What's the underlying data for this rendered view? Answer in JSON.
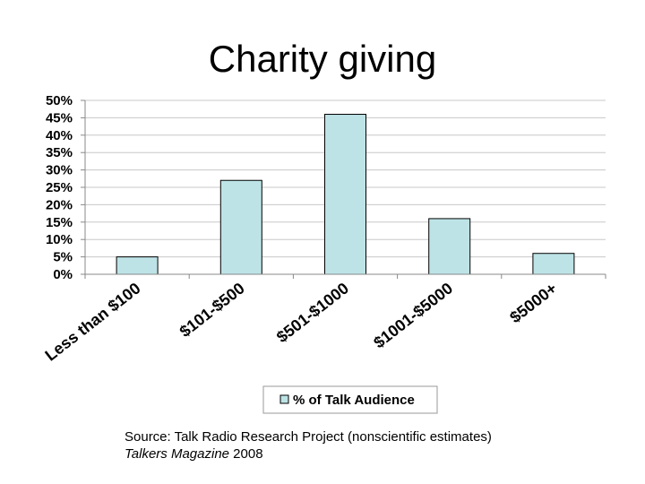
{
  "title": "Charity giving",
  "chart_data": {
    "type": "bar",
    "title": "Charity giving",
    "categories": [
      "Less than $100",
      "$101-$500",
      "$501-$1000",
      "$1001-$5000",
      "$5000+"
    ],
    "series": [
      {
        "name": "% of Talk Audience",
        "values": [
          5,
          27,
          46,
          16,
          6
        ]
      }
    ],
    "ylim": [
      0,
      50
    ],
    "yticks": [
      "0%",
      "5%",
      "10%",
      "15%",
      "20%",
      "25%",
      "30%",
      "35%",
      "40%",
      "45%",
      "50%"
    ],
    "ytick_values": [
      0,
      5,
      10,
      15,
      20,
      25,
      30,
      35,
      40,
      45,
      50
    ],
    "grid": true,
    "legend": "bottom",
    "bar_color": "#bde3e6",
    "xlabel": "",
    "ylabel": ""
  },
  "source": {
    "line1": "Source: Talk Radio Research Project (nonscientific estimates)",
    "magazine": "Talkers Magazine",
    "year": " 2008"
  }
}
